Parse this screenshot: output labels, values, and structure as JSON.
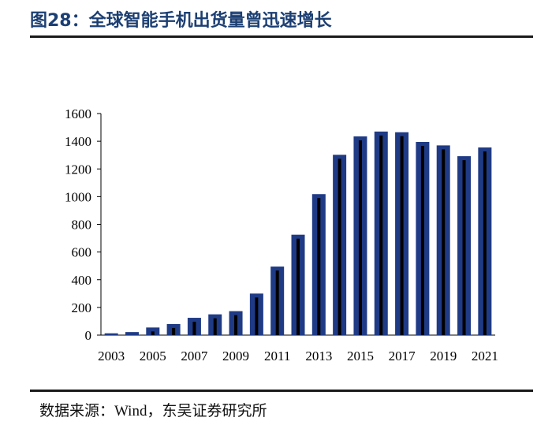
{
  "header": {
    "title": "图28：全球智能手机出货量曾迅速增长"
  },
  "footer": {
    "source": "数据来源：Wind，东吴证券研究所"
  },
  "colors": {
    "bar_edge": "#1f3b86",
    "bar_core": "#000000",
    "title": "#1c3f73"
  },
  "chart_data": {
    "type": "bar",
    "title": "",
    "xlabel": "",
    "ylabel": "",
    "ylim": [
      0,
      1600
    ],
    "yticks": [
      0,
      200,
      400,
      600,
      800,
      1000,
      1200,
      1400,
      1600
    ],
    "xtick_labels": [
      "2003",
      "2005",
      "2007",
      "2009",
      "2011",
      "2013",
      "2015",
      "2017",
      "2019",
      "2021"
    ],
    "categories": [
      "2003",
      "2004",
      "2005",
      "2006",
      "2007",
      "2008",
      "2009",
      "2010",
      "2011",
      "2012",
      "2013",
      "2014",
      "2015",
      "2016",
      "2017",
      "2018",
      "2019",
      "2020",
      "2021"
    ],
    "values": [
      13,
      22,
      55,
      80,
      125,
      150,
      173,
      300,
      495,
      725,
      1018,
      1302,
      1435,
      1470,
      1465,
      1395,
      1370,
      1292,
      1355
    ],
    "grid": false,
    "legend": "none"
  }
}
